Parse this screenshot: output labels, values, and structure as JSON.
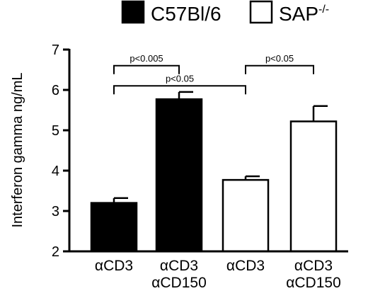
{
  "chart_data": {
    "type": "bar",
    "ylabel": "Interferon gamma ng/mL",
    "ylim": [
      2,
      7
    ],
    "yticks": [
      2,
      3,
      4,
      5,
      6,
      7
    ],
    "categories": [
      [
        "αCD3"
      ],
      [
        "αCD3",
        "αCD150"
      ],
      [
        "αCD3"
      ],
      [
        "αCD3",
        "αCD150"
      ]
    ],
    "bars": [
      {
        "group": "C57Bl/6",
        "value": 3.2,
        "error": 0.12
      },
      {
        "group": "C57Bl/6",
        "value": 5.77,
        "error": 0.18
      },
      {
        "group": "SAP-/-",
        "value": 3.77,
        "error": 0.09
      },
      {
        "group": "SAP-/-",
        "value": 5.22,
        "error": 0.38
      }
    ],
    "legend": [
      {
        "name": "C57Bl/6",
        "fill": "#000000",
        "sup": ""
      },
      {
        "name": "SAP",
        "fill": "#ffffff",
        "sup": "-/-"
      }
    ],
    "legend_position": "top",
    "annotations": [
      {
        "label": "p<0.005",
        "from": 0,
        "to": 1,
        "level": 6.6
      },
      {
        "label": "p<0.05",
        "from": 2,
        "to": 3,
        "level": 6.6
      },
      {
        "label": "p<0.05",
        "from": 0,
        "to": 2,
        "level": 6.1
      }
    ]
  }
}
